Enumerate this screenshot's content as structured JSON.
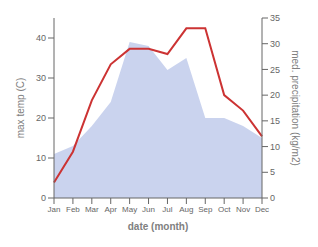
{
  "chart_data": {
    "type": "combo",
    "categories": [
      "Jan",
      "Feb",
      "Mar",
      "Apr",
      "May",
      "Jun",
      "Jul",
      "Aug",
      "Sep",
      "Oct",
      "Nov",
      "Dec"
    ],
    "xlabel": "date (month)",
    "ylabel": "max temp (C)",
    "y2label": "med. precipitation (kg/m2)",
    "series": [
      {
        "type": "area",
        "color": "#b8c4e8",
        "values": [
          11,
          13,
          18,
          24,
          39,
          38,
          32,
          35,
          20,
          20,
          18,
          15
        ]
      },
      {
        "type": "line",
        "axis": "y2",
        "color": "#cc3333",
        "values": [
          3,
          9,
          19,
          26,
          29,
          29,
          28,
          33,
          33,
          20,
          17,
          12
        ]
      }
    ],
    "ylim": [
      0,
      45
    ],
    "yticks": [
      0,
      10,
      20,
      30,
      40
    ],
    "y2lim": [
      0,
      35
    ],
    "y2ticks": [
      0,
      5,
      10,
      15,
      20,
      25,
      30,
      35
    ],
    "grid": false
  }
}
